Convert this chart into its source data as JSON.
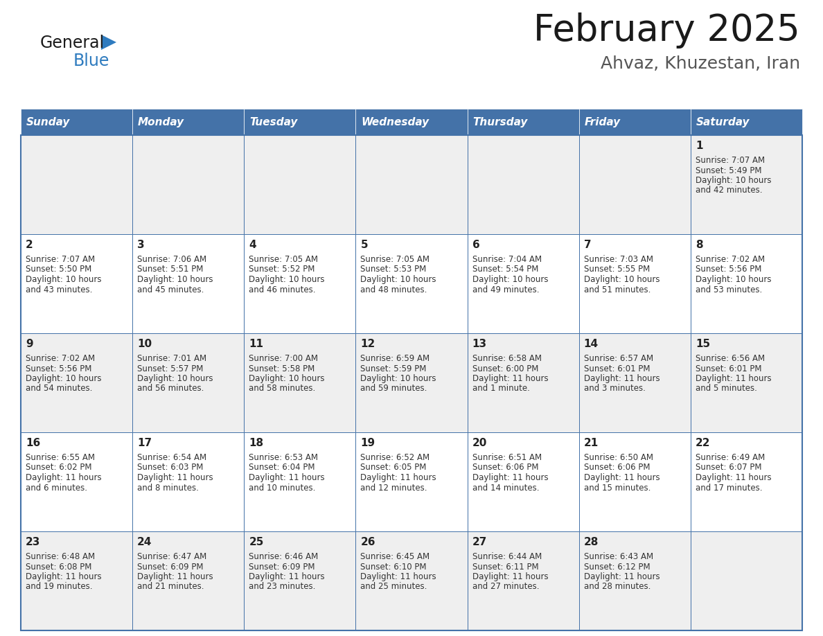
{
  "title": "February 2025",
  "subtitle": "Ahvaz, Khuzestan, Iran",
  "header_bg": "#4472a8",
  "header_text": "#ffffff",
  "day_headers": [
    "Sunday",
    "Monday",
    "Tuesday",
    "Wednesday",
    "Thursday",
    "Friday",
    "Saturday"
  ],
  "row_odd_bg": "#efefef",
  "row_even_bg": "#ffffff",
  "cell_text_color": "#333333",
  "day_num_color": "#222222",
  "border_color": "#4472a8",
  "logo_general_color": "#1a1a1a",
  "logo_blue_color": "#2e7bbf",
  "calendar": [
    [
      null,
      null,
      null,
      null,
      null,
      null,
      {
        "day": "1",
        "sunrise": "7:07 AM",
        "sunset": "5:49 PM",
        "daylight_line1": "Daylight: 10 hours",
        "daylight_line2": "and 42 minutes."
      }
    ],
    [
      {
        "day": "2",
        "sunrise": "7:07 AM",
        "sunset": "5:50 PM",
        "daylight_line1": "Daylight: 10 hours",
        "daylight_line2": "and 43 minutes."
      },
      {
        "day": "3",
        "sunrise": "7:06 AM",
        "sunset": "5:51 PM",
        "daylight_line1": "Daylight: 10 hours",
        "daylight_line2": "and 45 minutes."
      },
      {
        "day": "4",
        "sunrise": "7:05 AM",
        "sunset": "5:52 PM",
        "daylight_line1": "Daylight: 10 hours",
        "daylight_line2": "and 46 minutes."
      },
      {
        "day": "5",
        "sunrise": "7:05 AM",
        "sunset": "5:53 PM",
        "daylight_line1": "Daylight: 10 hours",
        "daylight_line2": "and 48 minutes."
      },
      {
        "day": "6",
        "sunrise": "7:04 AM",
        "sunset": "5:54 PM",
        "daylight_line1": "Daylight: 10 hours",
        "daylight_line2": "and 49 minutes."
      },
      {
        "day": "7",
        "sunrise": "7:03 AM",
        "sunset": "5:55 PM",
        "daylight_line1": "Daylight: 10 hours",
        "daylight_line2": "and 51 minutes."
      },
      {
        "day": "8",
        "sunrise": "7:02 AM",
        "sunset": "5:56 PM",
        "daylight_line1": "Daylight: 10 hours",
        "daylight_line2": "and 53 minutes."
      }
    ],
    [
      {
        "day": "9",
        "sunrise": "7:02 AM",
        "sunset": "5:56 PM",
        "daylight_line1": "Daylight: 10 hours",
        "daylight_line2": "and 54 minutes."
      },
      {
        "day": "10",
        "sunrise": "7:01 AM",
        "sunset": "5:57 PM",
        "daylight_line1": "Daylight: 10 hours",
        "daylight_line2": "and 56 minutes."
      },
      {
        "day": "11",
        "sunrise": "7:00 AM",
        "sunset": "5:58 PM",
        "daylight_line1": "Daylight: 10 hours",
        "daylight_line2": "and 58 minutes."
      },
      {
        "day": "12",
        "sunrise": "6:59 AM",
        "sunset": "5:59 PM",
        "daylight_line1": "Daylight: 10 hours",
        "daylight_line2": "and 59 minutes."
      },
      {
        "day": "13",
        "sunrise": "6:58 AM",
        "sunset": "6:00 PM",
        "daylight_line1": "Daylight: 11 hours",
        "daylight_line2": "and 1 minute."
      },
      {
        "day": "14",
        "sunrise": "6:57 AM",
        "sunset": "6:01 PM",
        "daylight_line1": "Daylight: 11 hours",
        "daylight_line2": "and 3 minutes."
      },
      {
        "day": "15",
        "sunrise": "6:56 AM",
        "sunset": "6:01 PM",
        "daylight_line1": "Daylight: 11 hours",
        "daylight_line2": "and 5 minutes."
      }
    ],
    [
      {
        "day": "16",
        "sunrise": "6:55 AM",
        "sunset": "6:02 PM",
        "daylight_line1": "Daylight: 11 hours",
        "daylight_line2": "and 6 minutes."
      },
      {
        "day": "17",
        "sunrise": "6:54 AM",
        "sunset": "6:03 PM",
        "daylight_line1": "Daylight: 11 hours",
        "daylight_line2": "and 8 minutes."
      },
      {
        "day": "18",
        "sunrise": "6:53 AM",
        "sunset": "6:04 PM",
        "daylight_line1": "Daylight: 11 hours",
        "daylight_line2": "and 10 minutes."
      },
      {
        "day": "19",
        "sunrise": "6:52 AM",
        "sunset": "6:05 PM",
        "daylight_line1": "Daylight: 11 hours",
        "daylight_line2": "and 12 minutes."
      },
      {
        "day": "20",
        "sunrise": "6:51 AM",
        "sunset": "6:06 PM",
        "daylight_line1": "Daylight: 11 hours",
        "daylight_line2": "and 14 minutes."
      },
      {
        "day": "21",
        "sunrise": "6:50 AM",
        "sunset": "6:06 PM",
        "daylight_line1": "Daylight: 11 hours",
        "daylight_line2": "and 15 minutes."
      },
      {
        "day": "22",
        "sunrise": "6:49 AM",
        "sunset": "6:07 PM",
        "daylight_line1": "Daylight: 11 hours",
        "daylight_line2": "and 17 minutes."
      }
    ],
    [
      {
        "day": "23",
        "sunrise": "6:48 AM",
        "sunset": "6:08 PM",
        "daylight_line1": "Daylight: 11 hours",
        "daylight_line2": "and 19 minutes."
      },
      {
        "day": "24",
        "sunrise": "6:47 AM",
        "sunset": "6:09 PM",
        "daylight_line1": "Daylight: 11 hours",
        "daylight_line2": "and 21 minutes."
      },
      {
        "day": "25",
        "sunrise": "6:46 AM",
        "sunset": "6:09 PM",
        "daylight_line1": "Daylight: 11 hours",
        "daylight_line2": "and 23 minutes."
      },
      {
        "day": "26",
        "sunrise": "6:45 AM",
        "sunset": "6:10 PM",
        "daylight_line1": "Daylight: 11 hours",
        "daylight_line2": "and 25 minutes."
      },
      {
        "day": "27",
        "sunrise": "6:44 AM",
        "sunset": "6:11 PM",
        "daylight_line1": "Daylight: 11 hours",
        "daylight_line2": "and 27 minutes."
      },
      {
        "day": "28",
        "sunrise": "6:43 AM",
        "sunset": "6:12 PM",
        "daylight_line1": "Daylight: 11 hours",
        "daylight_line2": "and 28 minutes."
      },
      null
    ]
  ]
}
